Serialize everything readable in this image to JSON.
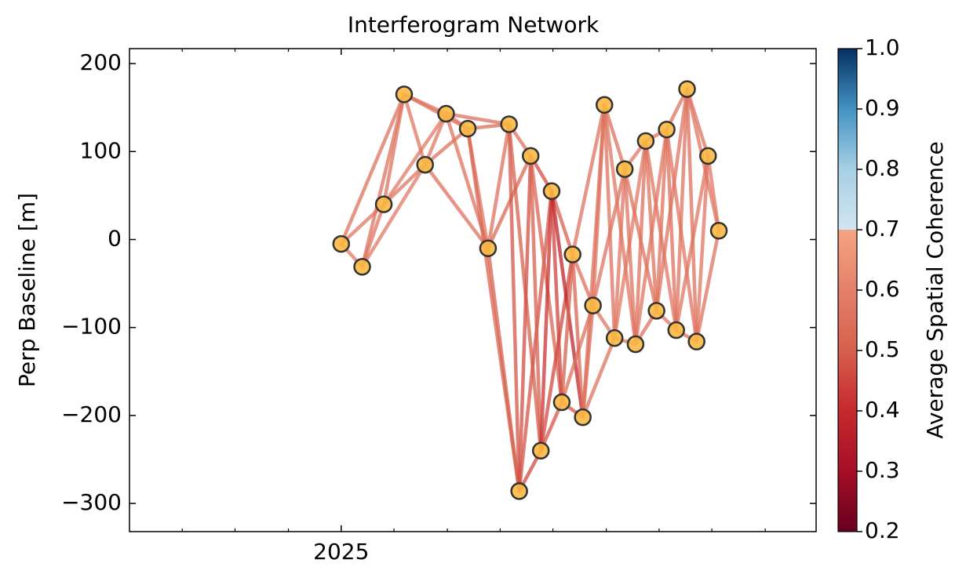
{
  "chart_data": {
    "type": "network",
    "title": "Interferogram Network",
    "ylabel": "Perp Baseline [m]",
    "colorbar_label": "Average Spatial Coherence",
    "x": [
      2025.0,
      2025.033,
      2025.067,
      2025.099,
      2025.132,
      2025.165,
      2025.199,
      2025.231,
      2025.264,
      2025.28,
      2025.298,
      2025.314,
      2025.331,
      2025.347,
      2025.364,
      2025.38,
      2025.396,
      2025.414,
      2025.43,
      2025.446,
      2025.463,
      2025.479,
      2025.496,
      2025.512,
      2025.527,
      2025.544,
      2025.559,
      2025.577,
      2025.594
    ],
    "y": [
      -5,
      -31,
      40,
      165,
      85,
      143,
      126,
      -10,
      131,
      -286,
      95,
      -240,
      55,
      -185,
      -17,
      -202,
      -75,
      153,
      -112,
      80,
      -119,
      112,
      -81,
      125,
      -103,
      171,
      -116,
      95,
      10
    ],
    "coherence": [
      0.58,
      0.57,
      0.56,
      0.57,
      0.56,
      0.58,
      0.56,
      0.57,
      0.58,
      0.57,
      0.55,
      0.56,
      0.58,
      0.56,
      0.55,
      0.57,
      0.56,
      0.55,
      0.56,
      0.54,
      0.52,
      0.55,
      0.5,
      0.53,
      0.48,
      0.55,
      0.5,
      0.47,
      0.46,
      0.48,
      0.5,
      0.47,
      0.52,
      0.42,
      0.48,
      0.46,
      0.45,
      0.5,
      0.38,
      0.5,
      0.48,
      0.55,
      0.52,
      0.55,
      0.56,
      0.53,
      0.55,
      0.56,
      0.56,
      0.57,
      0.56,
      0.56,
      0.55,
      0.57,
      0.57,
      0.56,
      0.58,
      0.56,
      0.57,
      0.56,
      0.55,
      0.56,
      0.57,
      0.56,
      0.55,
      0.57,
      0.56,
      0.57,
      0.56,
      0.55,
      0.56,
      0.57,
      0.56,
      0.55,
      0.57,
      0.55,
      0.56,
      0.57,
      0.57,
      0.56,
      0.58
    ],
    "point_color": "#f9b843",
    "point_edge_color": "#333333",
    "xlim": [
      2024.667,
      2025.747
    ],
    "xticks": [
      2025
    ],
    "xminorticks": [
      2024.75,
      2024.833,
      2024.917,
      2025.083,
      2025.167,
      2025.25,
      2025.333,
      2025.417,
      2025.5,
      2025.583,
      2025.667
    ],
    "ylim": [
      -332,
      217
    ],
    "yticks": [
      {
        "value": -300,
        "label": "−300"
      },
      {
        "value": -200,
        "label": "−200"
      },
      {
        "value": -100,
        "label": "−100"
      },
      0,
      100,
      200
    ],
    "colormap": "RdBu",
    "clim": [
      0.2,
      1.0
    ],
    "cticks": [
      0.2,
      0.3,
      0.4,
      0.5,
      0.6,
      0.7,
      0.8,
      0.9,
      {
        "value": 1.0,
        "label": "1.0"
      }
    ]
  }
}
